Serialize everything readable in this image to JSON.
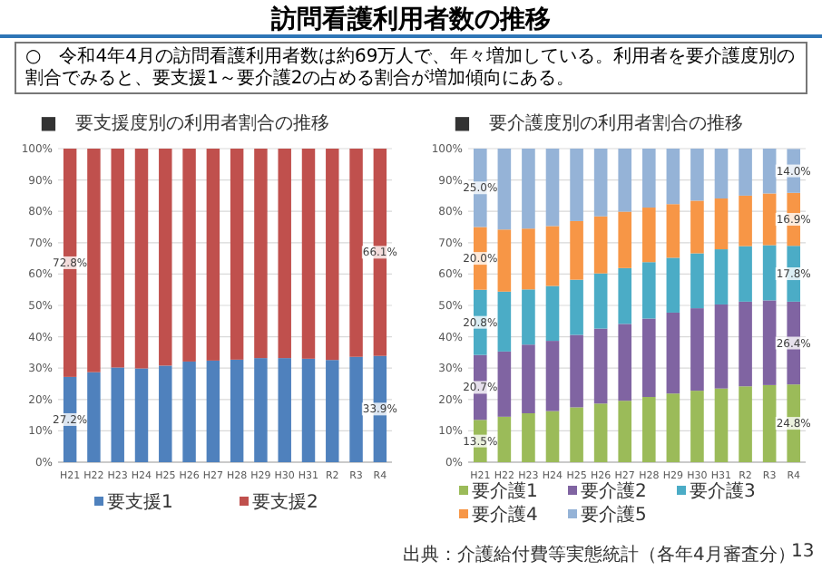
{
  "chart_data": [
    {
      "type": "bar",
      "stacked": true,
      "title": "■　要支援度別の利用者割合の推移",
      "annotations": [
        "訪問看護利用者数の推移",
        "○　令和4年4月の訪問看護利用者数は約69万人で、年々増加している。利用者を要介護度別の割合でみると、要支援1～要介護2の占める割合が増加傾向にある。"
      ],
      "categories": [
        "H21",
        "H22",
        "H23",
        "H24",
        "H25",
        "H26",
        "H27",
        "H28",
        "H29",
        "H30",
        "H31",
        "R2",
        "R3",
        "R4"
      ],
      "series": [
        {
          "name": "要支援1",
          "color": "#4f81bd",
          "values": [
            27.2,
            28.7,
            30.2,
            29.9,
            30.8,
            32.1,
            32.4,
            32.7,
            33.2,
            33.2,
            33.0,
            32.6,
            33.6,
            33.9
          ],
          "value_labels": [
            "27.2%",
            null,
            null,
            null,
            null,
            null,
            null,
            null,
            null,
            null,
            null,
            null,
            null,
            "33.9%"
          ]
        },
        {
          "name": "要支援2",
          "color": "#c0504d",
          "values": [
            72.8,
            71.3,
            69.8,
            70.1,
            69.2,
            67.9,
            67.6,
            67.3,
            66.8,
            66.8,
            67.0,
            67.4,
            66.4,
            66.1
          ],
          "value_labels": [
            "72.8%",
            null,
            null,
            null,
            null,
            null,
            null,
            null,
            null,
            null,
            null,
            null,
            null,
            "66.1%"
          ]
        }
      ],
      "ylim": [
        0,
        100
      ],
      "yticks": [
        {
          "value": 0,
          "label": "0%"
        },
        {
          "value": 10,
          "label": "10%"
        },
        {
          "value": 20,
          "label": "20%"
        },
        {
          "value": 30,
          "label": "30%"
        },
        {
          "value": 40,
          "label": "40%"
        },
        {
          "value": 50,
          "label": "50%"
        },
        {
          "value": 60,
          "label": "60%"
        },
        {
          "value": 70,
          "label": "70%"
        },
        {
          "value": 80,
          "label": "80%"
        },
        {
          "value": 90,
          "label": "90%"
        },
        {
          "value": 100,
          "label": "100%"
        }
      ],
      "grid": "y",
      "legend": "bottom"
    },
    {
      "type": "bar",
      "stacked": true,
      "title": "■　要介護度別の利用者割合の推移",
      "annotations": [
        "出典：介護給付費等実態統計（各年4月審査分）",
        "13"
      ],
      "categories": [
        "H21",
        "H22",
        "H23",
        "H24",
        "H25",
        "H26",
        "H27",
        "H28",
        "H29",
        "H30",
        "H31",
        "R2",
        "R3",
        "R4"
      ],
      "series": [
        {
          "name": "要介護1",
          "color": "#9bbb59",
          "values": [
            13.5,
            14.5,
            15.6,
            16.3,
            17.5,
            18.7,
            19.6,
            20.8,
            21.9,
            22.8,
            23.5,
            24.2,
            24.6,
            24.8
          ],
          "value_labels": [
            "13.5%",
            null,
            null,
            null,
            null,
            null,
            null,
            null,
            null,
            null,
            null,
            null,
            null,
            "24.8%"
          ]
        },
        {
          "name": "要介護2",
          "color": "#8064a2",
          "values": [
            20.7,
            20.8,
            21.9,
            22.4,
            23.1,
            23.9,
            24.5,
            25.0,
            25.8,
            26.3,
            26.8,
            27.0,
            27.0,
            26.4
          ],
          "value_labels": [
            "20.7%",
            null,
            null,
            null,
            null,
            null,
            null,
            null,
            null,
            null,
            null,
            null,
            null,
            "26.4%"
          ]
        },
        {
          "name": "要介護3",
          "color": "#4bacc6",
          "values": [
            20.8,
            19.1,
            17.6,
            17.5,
            17.6,
            17.6,
            17.8,
            18.0,
            17.5,
            17.5,
            17.6,
            17.7,
            17.6,
            17.8
          ],
          "value_labels": [
            "20.8%",
            null,
            null,
            null,
            null,
            null,
            null,
            null,
            null,
            null,
            null,
            null,
            null,
            "17.8%"
          ]
        },
        {
          "name": "要介護4",
          "color": "#f79646",
          "values": [
            20.0,
            19.8,
            19.4,
            19.1,
            18.7,
            18.2,
            18.0,
            17.4,
            17.1,
            16.8,
            16.2,
            16.1,
            16.5,
            16.9
          ],
          "value_labels": [
            "20.0%",
            null,
            null,
            null,
            null,
            null,
            null,
            null,
            null,
            null,
            null,
            null,
            null,
            "16.9%"
          ]
        },
        {
          "name": "要介護5",
          "color": "#95b3d7",
          "values": [
            25.0,
            25.8,
            25.5,
            24.7,
            23.1,
            21.6,
            20.1,
            18.8,
            17.7,
            16.6,
            15.9,
            15.0,
            14.3,
            14.0
          ],
          "value_labels": [
            "25.0%",
            null,
            null,
            null,
            null,
            null,
            null,
            null,
            null,
            null,
            null,
            null,
            null,
            "14.0%"
          ]
        }
      ],
      "ylim": [
        0,
        100
      ],
      "yticks": [
        {
          "value": 0,
          "label": "0%"
        },
        {
          "value": 10,
          "label": "10%"
        },
        {
          "value": 20,
          "label": "20%"
        },
        {
          "value": 30,
          "label": "30%"
        },
        {
          "value": 40,
          "label": "40%"
        },
        {
          "value": 50,
          "label": "50%"
        },
        {
          "value": 60,
          "label": "60%"
        },
        {
          "value": 70,
          "label": "70%"
        },
        {
          "value": 80,
          "label": "80%"
        },
        {
          "value": 90,
          "label": "90%"
        },
        {
          "value": 100,
          "label": "100%"
        }
      ],
      "grid": "y",
      "legend": "bottom"
    }
  ]
}
